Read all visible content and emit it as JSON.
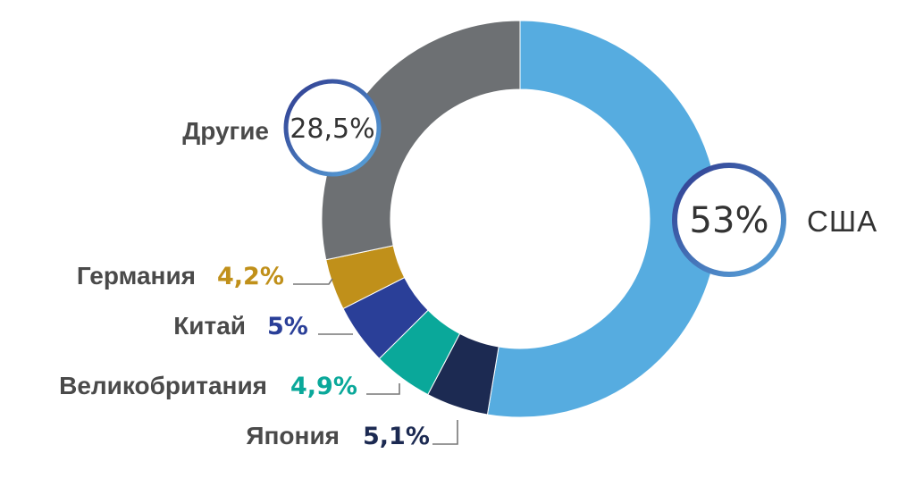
{
  "chart_data": {
    "type": "pie",
    "variant": "donut",
    "slices": [
      {
        "name": "США",
        "value": 53,
        "label": "53%",
        "color": "#56ace0"
      },
      {
        "name": "Япония",
        "value": 5.1,
        "label": "5,1%",
        "color": "#1c2a52"
      },
      {
        "name": "Великобритания",
        "value": 4.9,
        "label": "4,9%",
        "color": "#0aa89a"
      },
      {
        "name": "Китай",
        "value": 5,
        "label": "5%",
        "color": "#2a3f98"
      },
      {
        "name": "Германия",
        "value": 4.2,
        "label": "4,2%",
        "color": "#c0901a"
      },
      {
        "name": "Другие",
        "value": 28.5,
        "label": "28,5%",
        "color": "#6d7073"
      }
    ],
    "legend": "inline labels"
  }
}
